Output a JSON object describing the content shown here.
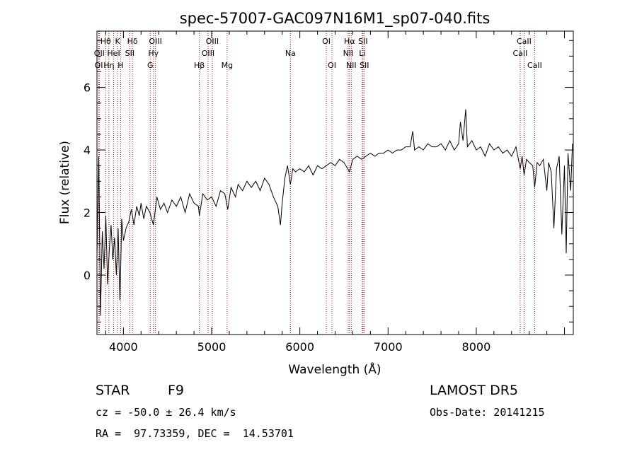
{
  "chart_data": {
    "type": "line",
    "title": "spec-57007-GAC097N16M1_sp07-040.fits",
    "xlabel": "Wavelength (Å)",
    "ylabel": "Flux (relative)",
    "xlim": [
      3700,
      9100
    ],
    "ylim": [
      -1.9,
      7.8
    ],
    "x_ticks": [
      4000,
      5000,
      6000,
      7000,
      8000
    ],
    "x_tick_labels": [
      "4000",
      "5000",
      "6000",
      "7000",
      "8000"
    ],
    "y_ticks": [
      0,
      2,
      4,
      6
    ],
    "y_tick_labels": [
      "0",
      "2",
      "4",
      "6"
    ],
    "grid": false,
    "line_color": "#000000",
    "marker_color": "#cc0000",
    "series": [
      {
        "points": [
          [
            3700,
            0.6
          ],
          [
            3720,
            3.8
          ],
          [
            3740,
            -1.3
          ],
          [
            3760,
            1.4
          ],
          [
            3780,
            0.2
          ],
          [
            3800,
            1.9
          ],
          [
            3820,
            -0.3
          ],
          [
            3840,
            0.8
          ],
          [
            3860,
            1.6
          ],
          [
            3880,
            0.5
          ],
          [
            3900,
            1.2
          ],
          [
            3920,
            0.0
          ],
          [
            3940,
            1.5
          ],
          [
            3960,
            -0.8
          ],
          [
            3970,
            0.4
          ],
          [
            3980,
            1.8
          ],
          [
            4000,
            1.1
          ],
          [
            4030,
            1.5
          ],
          [
            4060,
            1.7
          ],
          [
            4090,
            2.1
          ],
          [
            4120,
            1.6
          ],
          [
            4150,
            2.2
          ],
          [
            4180,
            1.9
          ],
          [
            4200,
            2.3
          ],
          [
            4230,
            1.8
          ],
          [
            4260,
            2.2
          ],
          [
            4300,
            2.0
          ],
          [
            4340,
            1.6
          ],
          [
            4380,
            2.5
          ],
          [
            4420,
            2.1
          ],
          [
            4460,
            2.3
          ],
          [
            4500,
            2.0
          ],
          [
            4550,
            2.4
          ],
          [
            4600,
            2.2
          ],
          [
            4650,
            2.5
          ],
          [
            4700,
            2.0
          ],
          [
            4750,
            2.6
          ],
          [
            4800,
            2.3
          ],
          [
            4850,
            2.2
          ],
          [
            4861,
            1.9
          ],
          [
            4900,
            2.6
          ],
          [
            4950,
            2.4
          ],
          [
            5000,
            2.5
          ],
          [
            5050,
            2.2
          ],
          [
            5100,
            2.7
          ],
          [
            5150,
            2.6
          ],
          [
            5183,
            2.1
          ],
          [
            5220,
            2.8
          ],
          [
            5270,
            2.5
          ],
          [
            5300,
            2.9
          ],
          [
            5350,
            2.7
          ],
          [
            5400,
            3.0
          ],
          [
            5450,
            2.8
          ],
          [
            5500,
            3.0
          ],
          [
            5550,
            2.7
          ],
          [
            5600,
            3.1
          ],
          [
            5650,
            2.9
          ],
          [
            5700,
            2.5
          ],
          [
            5750,
            2.2
          ],
          [
            5780,
            1.6
          ],
          [
            5800,
            2.3
          ],
          [
            5830,
            3.1
          ],
          [
            5860,
            3.5
          ],
          [
            5893,
            2.9
          ],
          [
            5920,
            3.4
          ],
          [
            5950,
            3.3
          ],
          [
            6000,
            3.4
          ],
          [
            6050,
            3.3
          ],
          [
            6100,
            3.5
          ],
          [
            6150,
            3.2
          ],
          [
            6200,
            3.5
          ],
          [
            6250,
            3.4
          ],
          [
            6300,
            3.5
          ],
          [
            6350,
            3.6
          ],
          [
            6400,
            3.5
          ],
          [
            6450,
            3.7
          ],
          [
            6500,
            3.6
          ],
          [
            6563,
            3.3
          ],
          [
            6600,
            3.7
          ],
          [
            6650,
            3.8
          ],
          [
            6700,
            3.7
          ],
          [
            6750,
            3.8
          ],
          [
            6800,
            3.9
          ],
          [
            6850,
            3.8
          ],
          [
            6900,
            3.9
          ],
          [
            6950,
            3.9
          ],
          [
            7000,
            4.0
          ],
          [
            7050,
            3.9
          ],
          [
            7100,
            4.0
          ],
          [
            7150,
            4.0
          ],
          [
            7200,
            4.1
          ],
          [
            7250,
            4.1
          ],
          [
            7280,
            4.6
          ],
          [
            7300,
            4.0
          ],
          [
            7350,
            4.1
          ],
          [
            7400,
            4.0
          ],
          [
            7450,
            4.2
          ],
          [
            7500,
            4.1
          ],
          [
            7550,
            4.1
          ],
          [
            7600,
            4.2
          ],
          [
            7650,
            4.0
          ],
          [
            7700,
            4.3
          ],
          [
            7750,
            4.0
          ],
          [
            7800,
            4.2
          ],
          [
            7820,
            4.9
          ],
          [
            7850,
            4.3
          ],
          [
            7880,
            5.3
          ],
          [
            7900,
            4.1
          ],
          [
            7950,
            4.3
          ],
          [
            8000,
            4.0
          ],
          [
            8050,
            4.1
          ],
          [
            8100,
            3.8
          ],
          [
            8150,
            4.2
          ],
          [
            8200,
            4.0
          ],
          [
            8250,
            4.1
          ],
          [
            8300,
            3.9
          ],
          [
            8350,
            4.0
          ],
          [
            8400,
            3.8
          ],
          [
            8450,
            4.1
          ],
          [
            8498,
            3.4
          ],
          [
            8520,
            3.8
          ],
          [
            8542,
            3.2
          ],
          [
            8570,
            3.7
          ],
          [
            8600,
            3.6
          ],
          [
            8640,
            3.5
          ],
          [
            8662,
            2.8
          ],
          [
            8690,
            3.6
          ],
          [
            8720,
            3.5
          ],
          [
            8760,
            3.7
          ],
          [
            8800,
            2.7
          ],
          [
            8820,
            3.6
          ],
          [
            8850,
            3.3
          ],
          [
            8880,
            1.5
          ],
          [
            8910,
            3.4
          ],
          [
            8940,
            3.8
          ],
          [
            8970,
            1.3
          ],
          [
            9000,
            3.5
          ],
          [
            9020,
            0.7
          ],
          [
            9040,
            3.9
          ],
          [
            9070,
            2.7
          ],
          [
            9090,
            4.2
          ]
        ]
      }
    ],
    "line_markers": [
      {
        "label": "Hθ",
        "x": 3798,
        "row": 1
      },
      {
        "label": "OII",
        "x": 3727,
        "row": 2
      },
      {
        "label": "OI",
        "x": 3720,
        "row": 3
      },
      {
        "label": "Hη",
        "x": 3835,
        "row": 3
      },
      {
        "label": "HeI",
        "x": 3889,
        "row": 2
      },
      {
        "label": "K",
        "x": 3934,
        "row": 1
      },
      {
        "label": "H",
        "x": 3968,
        "row": 3
      },
      {
        "label": "Hδ",
        "x": 4102,
        "row": 1
      },
      {
        "label": "SII",
        "x": 4072,
        "row": 2
      },
      {
        "label": "OIII",
        "x": 4363,
        "row": 1
      },
      {
        "label": "Hγ",
        "x": 4340,
        "row": 2
      },
      {
        "label": "G",
        "x": 4304,
        "row": 3
      },
      {
        "label": "OIII",
        "x": 5007,
        "row": 1
      },
      {
        "label": "OIII",
        "x": 4959,
        "row": 2
      },
      {
        "label": "Hβ",
        "x": 4861,
        "row": 3
      },
      {
        "label": "Mg",
        "x": 5175,
        "row": 3
      },
      {
        "label": "Na",
        "x": 5893,
        "row": 2
      },
      {
        "label": "OI",
        "x": 6300,
        "row": 1
      },
      {
        "label": "OI",
        "x": 6364,
        "row": 3
      },
      {
        "label": "Hα",
        "x": 6563,
        "row": 1
      },
      {
        "label": "SII",
        "x": 6716,
        "row": 1
      },
      {
        "label": "NII",
        "x": 6548,
        "row": 2
      },
      {
        "label": "Li",
        "x": 6708,
        "row": 2
      },
      {
        "label": "NII",
        "x": 6583,
        "row": 3
      },
      {
        "label": "SII",
        "x": 6731,
        "row": 3
      },
      {
        "label": "CaII",
        "x": 8542,
        "row": 1
      },
      {
        "label": "CaII",
        "x": 8498,
        "row": 2
      },
      {
        "label": "CaII",
        "x": 8662,
        "row": 3
      }
    ]
  },
  "info": {
    "object_class": "STAR",
    "subclass": "F9",
    "survey": "LAMOST DR5",
    "redshift_line": "cz = -50.0 ± 26.4 km/s",
    "obs_date_line": "Obs-Date: 20141215",
    "coords_line": "RA =  97.73359, DEC =  14.53701"
  }
}
